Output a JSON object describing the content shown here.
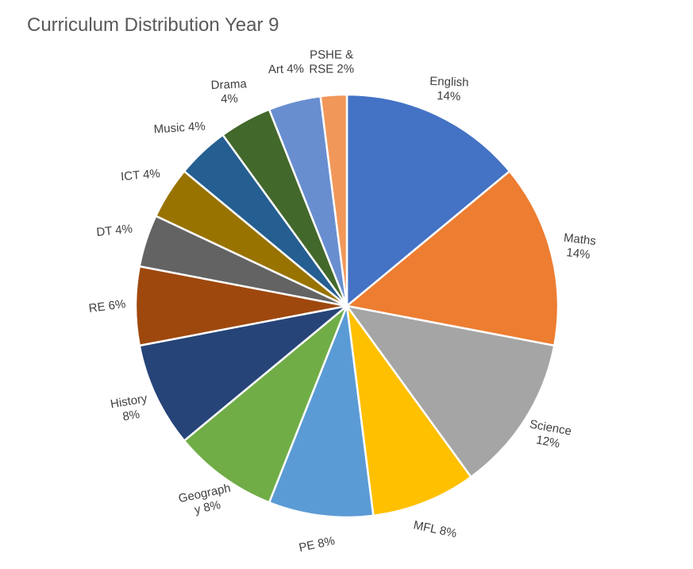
{
  "chart_data": {
    "type": "pie",
    "title": "Curriculum Distribution Year 9",
    "slices": [
      {
        "name": "English",
        "value": 14,
        "label": [
          "English",
          "14%"
        ],
        "color": "#4472C4"
      },
      {
        "name": "Maths",
        "value": 14,
        "label": [
          "Maths",
          "14%"
        ],
        "color": "#ED7D31"
      },
      {
        "name": "Science",
        "value": 12,
        "label": [
          "Science",
          "12%"
        ],
        "color": "#A5A5A5"
      },
      {
        "name": "MFL",
        "value": 8,
        "label": [
          "MFL 8%"
        ],
        "color": "#FFC000"
      },
      {
        "name": "PE",
        "value": 8,
        "label": [
          "PE 8%"
        ],
        "color": "#5B9BD5"
      },
      {
        "name": "Geography",
        "value": 8,
        "label": [
          "Geograph",
          "y 8%"
        ],
        "color": "#70AD47"
      },
      {
        "name": "History",
        "value": 8,
        "label": [
          "History",
          "8%"
        ],
        "color": "#264478"
      },
      {
        "name": "RE",
        "value": 6,
        "label": [
          "RE 6%"
        ],
        "color": "#9E480E"
      },
      {
        "name": "DT",
        "value": 4,
        "label": [
          "DT 4%"
        ],
        "color": "#636363"
      },
      {
        "name": "ICT",
        "value": 4,
        "label": [
          "ICT 4%"
        ],
        "color": "#997300"
      },
      {
        "name": "Music",
        "value": 4,
        "label": [
          "Music 4%"
        ],
        "color": "#255E91"
      },
      {
        "name": "Drama",
        "value": 4,
        "label": [
          "Drama",
          "4%"
        ],
        "color": "#43682B"
      },
      {
        "name": "Art",
        "value": 4,
        "label": [
          "Art 4%"
        ],
        "color": "#698ED0"
      },
      {
        "name": "PSHE & RSE",
        "value": 2,
        "label": [
          "PSHE &",
          "RSE 2%"
        ],
        "color": "#F1975A"
      }
    ]
  }
}
